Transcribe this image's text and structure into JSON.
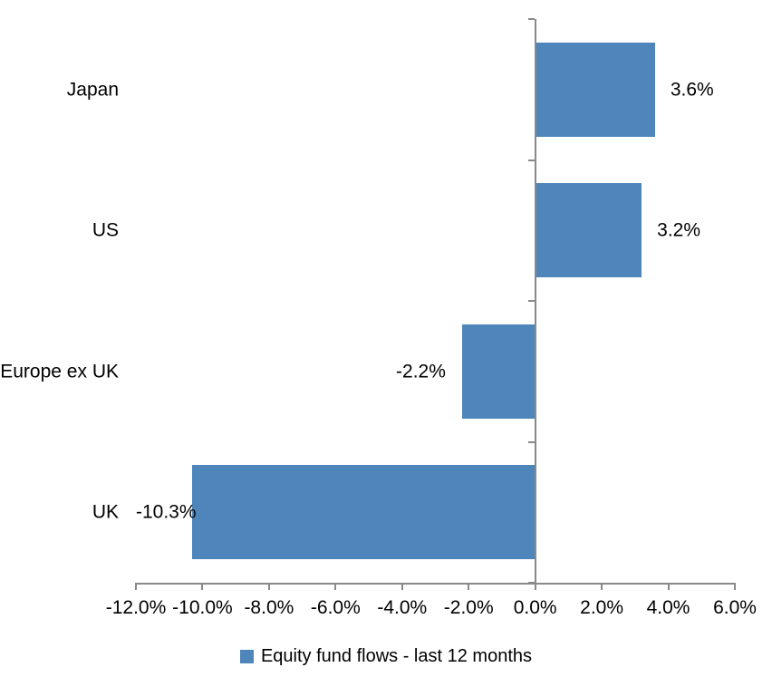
{
  "chart_data": {
    "type": "bar",
    "orientation": "horizontal",
    "title": "",
    "categories": [
      "Japan",
      "US",
      "Europe ex UK",
      "UK"
    ],
    "series": [
      {
        "name": "Equity fund flows - last 12 months",
        "values": [
          3.6,
          3.2,
          -2.2,
          -10.3
        ],
        "value_labels": [
          "3.6%",
          "3.2%",
          "-2.2%",
          "-10.3%"
        ],
        "color": "#4E86BC"
      }
    ],
    "x_axis": {
      "min": -12,
      "max": 6,
      "step": 2,
      "tick_labels": [
        "-12.0%",
        "-10.0%",
        "-8.0%",
        "-6.0%",
        "-4.0%",
        "-2.0%",
        "0.0%",
        "2.0%",
        "4.0%",
        "6.0%"
      ]
    },
    "grid": false,
    "legend_position": "bottom",
    "legend": {
      "label": "Equity fund flows - last 12 months",
      "swatch_color": "#4E86BC"
    },
    "colors": {
      "bar": "#4E86BC",
      "axis": "#898989",
      "text": "#000000",
      "background": "#FFFFFF"
    }
  }
}
